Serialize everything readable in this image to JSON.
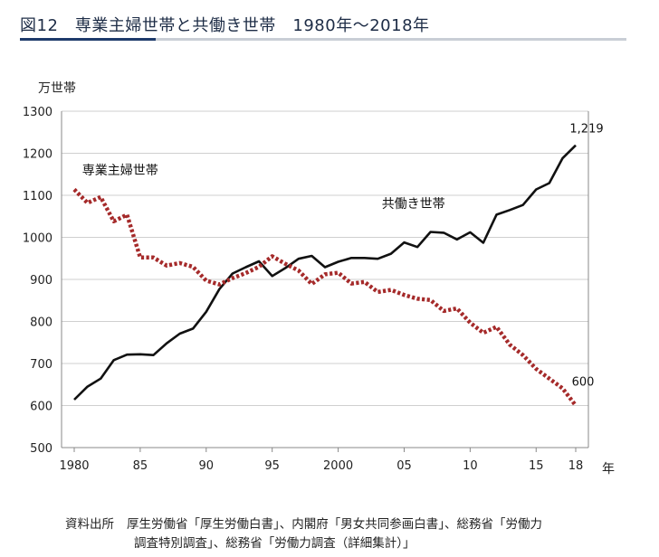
{
  "figure": {
    "title": "図12　専業主婦世帯と共働き世帯　1980年～2018年"
  },
  "source": {
    "label": "資料出所",
    "line1": "厚生労働省「厚生労働白書」、内閣府「男女共同参画白書」、総務省「労働力",
    "line2": "調査特別調査」、総務省「労働力調査（詳細集計）」"
  },
  "colors": {
    "dual_income": "#111111",
    "housewife": "#a52a2a",
    "grid": "#cfcfcf",
    "axis": "#888888"
  },
  "chart_data": {
    "type": "line",
    "ylabel": "万世帯",
    "xlabel": "年",
    "ylim": [
      500,
      1300
    ],
    "yticks": [
      500,
      600,
      700,
      800,
      900,
      1000,
      1100,
      1200,
      1300
    ],
    "xlim": [
      1980,
      2018
    ],
    "xticks": [
      {
        "value": 1980,
        "label": "1980"
      },
      {
        "value": 1985,
        "label": "85"
      },
      {
        "value": 1990,
        "label": "90"
      },
      {
        "value": 1995,
        "label": "95"
      },
      {
        "value": 2000,
        "label": "2000"
      },
      {
        "value": 2005,
        "label": "05"
      },
      {
        "value": 2010,
        "label": "10"
      },
      {
        "value": 2015,
        "label": "15"
      },
      {
        "value": 2018,
        "label": "18"
      }
    ],
    "grid": "horizontal",
    "x": [
      1980,
      1981,
      1982,
      1983,
      1984,
      1985,
      1986,
      1987,
      1988,
      1989,
      1990,
      1991,
      1992,
      1993,
      1994,
      1995,
      1996,
      1997,
      1998,
      1999,
      2000,
      2001,
      2002,
      2003,
      2004,
      2005,
      2006,
      2007,
      2008,
      2009,
      2010,
      2011,
      2012,
      2013,
      2014,
      2015,
      2016,
      2017,
      2018
    ],
    "series": [
      {
        "name": "共働き世帯",
        "style": "solid",
        "values": [
          614,
          645,
          664,
          708,
          721,
          722,
          720,
          748,
          771,
          783,
          823,
          877,
          914,
          929,
          943,
          908,
          927,
          949,
          956,
          929,
          942,
          951,
          951,
          949,
          961,
          988,
          977,
          1013,
          1011,
          995,
          1012,
          987,
          1054,
          1065,
          1077,
          1114,
          1129,
          1188,
          1219
        ],
        "end_label": "1,219"
      },
      {
        "name": "専業主婦世帯",
        "style": "dotted",
        "values": [
          1114,
          1082,
          1096,
          1038,
          1054,
          952,
          952,
          933,
          939,
          930,
          897,
          888,
          903,
          915,
          930,
          955,
          937,
          921,
          889,
          912,
          916,
          890,
          894,
          870,
          875,
          863,
          854,
          851,
          825,
          831,
          797,
          773,
          787,
          745,
          720,
          687,
          664,
          641,
          600
        ],
        "end_label": "600"
      }
    ]
  }
}
